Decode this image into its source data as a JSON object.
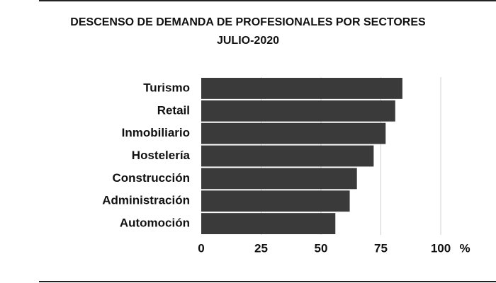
{
  "chart_data": {
    "type": "bar",
    "orientation": "horizontal",
    "title": [
      "DESCENSO DE DEMANDA DE PROFESIONALES POR SECTORES",
      "JULIO-2020"
    ],
    "xlabel": "%",
    "categories": [
      "Turismo",
      "Retail",
      "Inmobiliario",
      "Hostelería",
      "Construcción",
      "Administración",
      "Automoción"
    ],
    "values": [
      84,
      81,
      77,
      72,
      65,
      62,
      56
    ],
    "color": "#3a3a3a",
    "xlim": [
      0,
      100
    ],
    "xticks": [
      0,
      25,
      50,
      75,
      100
    ],
    "grid": true
  }
}
